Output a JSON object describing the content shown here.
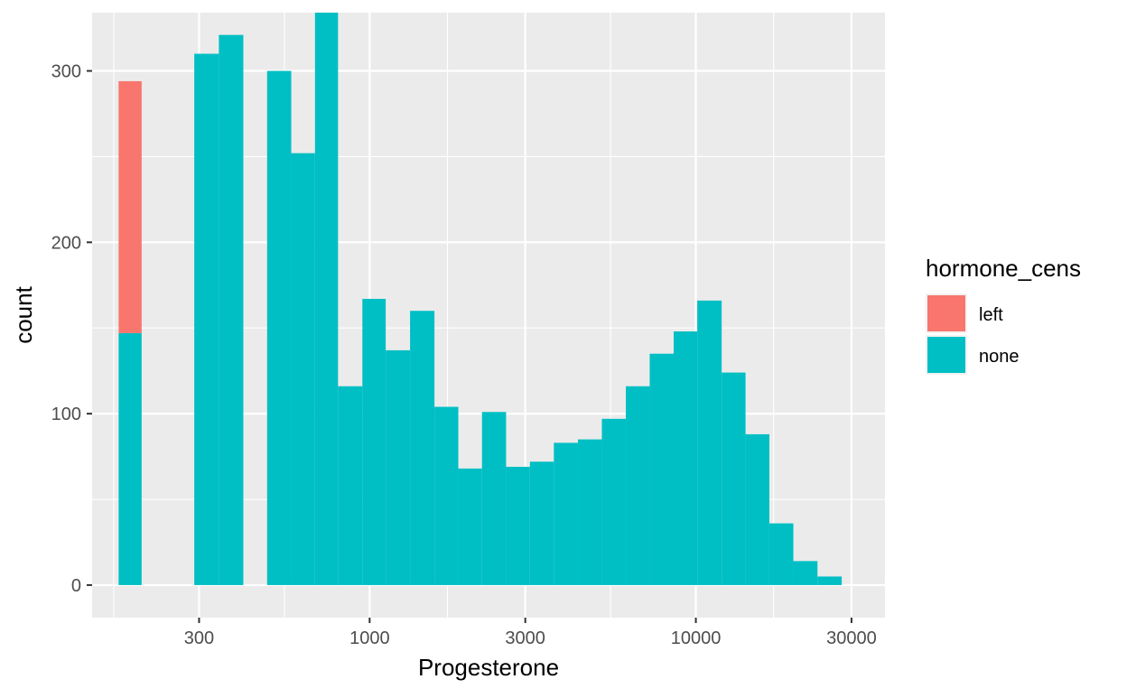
{
  "chart_data": {
    "type": "bar",
    "subtype": "stacked-histogram",
    "title": "",
    "xlabel": "Progesterone",
    "ylabel": "count",
    "x_scale": "log10",
    "xlim": [
      141,
      38000
    ],
    "ylim": [
      -19,
      334
    ],
    "x_ticks": [
      300,
      1000,
      3000,
      10000,
      30000
    ],
    "x_tick_labels": [
      "300",
      "1000",
      "3000",
      "10000",
      "30000"
    ],
    "y_ticks": [
      0,
      100,
      200,
      300
    ],
    "y_tick_labels": [
      "0",
      "100",
      "200",
      "300"
    ],
    "grid": true,
    "legend": {
      "title": "hormone_cens",
      "position": "right",
      "entries": [
        {
          "label": "left",
          "color": "#F8766D"
        },
        {
          "label": "none",
          "color": "#00BFC4"
        }
      ]
    },
    "bins": [
      {
        "x0": 170,
        "x1": 200,
        "left": 147,
        "none": 147
      },
      {
        "x0": 200,
        "x1": 245,
        "left": 0,
        "none": 0
      },
      {
        "x0": 245,
        "x1": 290,
        "left": 0,
        "none": 0
      },
      {
        "x0": 290,
        "x1": 345,
        "left": 0,
        "none": 310
      },
      {
        "x0": 345,
        "x1": 410,
        "left": 0,
        "none": 321
      },
      {
        "x0": 410,
        "x1": 485,
        "left": 0,
        "none": 0
      },
      {
        "x0": 485,
        "x1": 575,
        "left": 0,
        "none": 300
      },
      {
        "x0": 575,
        "x1": 680,
        "left": 0,
        "none": 252
      },
      {
        "x0": 680,
        "x1": 800,
        "left": 0,
        "none": 334
      },
      {
        "x0": 800,
        "x1": 950,
        "left": 0,
        "none": 116
      },
      {
        "x0": 950,
        "x1": 1120,
        "left": 0,
        "none": 167
      },
      {
        "x0": 1120,
        "x1": 1330,
        "left": 0,
        "none": 137
      },
      {
        "x0": 1330,
        "x1": 1580,
        "left": 0,
        "none": 160
      },
      {
        "x0": 1580,
        "x1": 1870,
        "left": 0,
        "none": 104
      },
      {
        "x0": 1870,
        "x1": 2210,
        "left": 0,
        "none": 68
      },
      {
        "x0": 2210,
        "x1": 2620,
        "left": 0,
        "none": 101
      },
      {
        "x0": 2620,
        "x1": 3100,
        "left": 0,
        "none": 69
      },
      {
        "x0": 3100,
        "x1": 3670,
        "left": 0,
        "none": 72
      },
      {
        "x0": 3670,
        "x1": 4350,
        "left": 0,
        "none": 83
      },
      {
        "x0": 4350,
        "x1": 5150,
        "left": 0,
        "none": 85
      },
      {
        "x0": 5150,
        "x1": 6100,
        "left": 0,
        "none": 97
      },
      {
        "x0": 6100,
        "x1": 7220,
        "left": 0,
        "none": 116
      },
      {
        "x0": 7220,
        "x1": 8550,
        "left": 0,
        "none": 135
      },
      {
        "x0": 8550,
        "x1": 10100,
        "left": 0,
        "none": 148
      },
      {
        "x0": 10100,
        "x1": 12000,
        "left": 0,
        "none": 166
      },
      {
        "x0": 12000,
        "x1": 14200,
        "left": 0,
        "none": 124
      },
      {
        "x0": 14200,
        "x1": 16800,
        "left": 0,
        "none": 88
      },
      {
        "x0": 16800,
        "x1": 19900,
        "left": 0,
        "none": 36
      },
      {
        "x0": 19900,
        "x1": 23600,
        "left": 0,
        "none": 14
      },
      {
        "x0": 23600,
        "x1": 28000,
        "left": 0,
        "none": 5
      }
    ]
  }
}
